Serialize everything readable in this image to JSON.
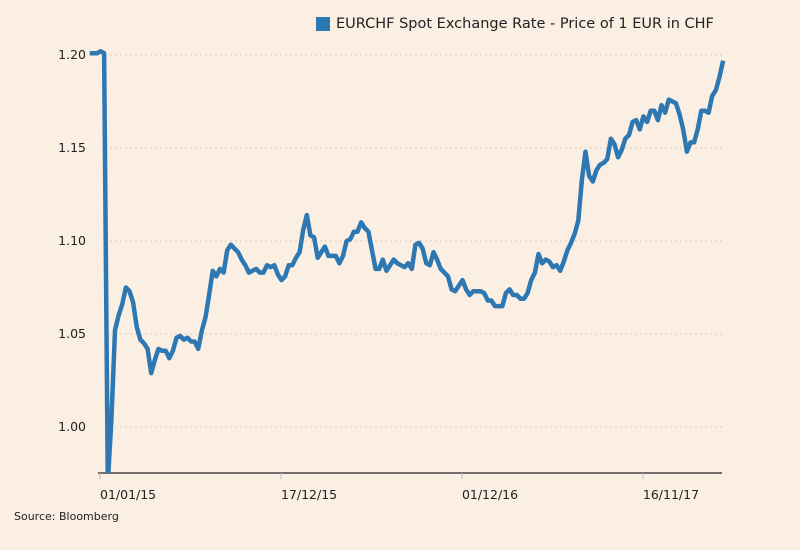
{
  "colors": {
    "series": "#2d78b3",
    "background": "#fbeee3",
    "axis": "#222222",
    "grid": "#d9cfc6"
  },
  "chart_data": {
    "type": "line",
    "title": "",
    "xlabel": "",
    "ylabel": "",
    "legend_position": "top-center",
    "grid": true,
    "ylim": [
      0.975,
      1.21
    ],
    "xlim": [
      "2014-12-12",
      "2018-04-20"
    ],
    "y_ticks": [
      "1.00",
      "1.05",
      "1.10",
      "1.15",
      "1.20"
    ],
    "y_tick_values": [
      1.0,
      1.05,
      1.1,
      1.15,
      1.2
    ],
    "x_ticks": [
      "01/01/15",
      "17/12/15",
      "01/12/16",
      "16/11/17"
    ],
    "x_tick_dates": [
      "2015-01-01",
      "2015-12-17",
      "2016-12-01",
      "2017-11-16"
    ],
    "series": [
      {
        "name": "EURCHF Spot Exchange Rate - Price of 1 EUR in CHF",
        "x": [
          "2014-12-12",
          "2014-12-19",
          "2014-12-26",
          "2015-01-02",
          "2015-01-09",
          "2015-01-16",
          "2015-01-23",
          "2015-01-30",
          "2015-02-06",
          "2015-02-13",
          "2015-02-20",
          "2015-02-27",
          "2015-03-06",
          "2015-03-13",
          "2015-03-20",
          "2015-03-27",
          "2015-04-03",
          "2015-04-10",
          "2015-04-17",
          "2015-04-24",
          "2015-05-01",
          "2015-05-08",
          "2015-05-15",
          "2015-05-22",
          "2015-05-29",
          "2015-06-05",
          "2015-06-12",
          "2015-06-19",
          "2015-06-26",
          "2015-07-03",
          "2015-07-10",
          "2015-07-17",
          "2015-07-24",
          "2015-07-31",
          "2015-08-07",
          "2015-08-14",
          "2015-08-21",
          "2015-08-28",
          "2015-09-04",
          "2015-09-11",
          "2015-09-18",
          "2015-09-25",
          "2015-10-02",
          "2015-10-09",
          "2015-10-16",
          "2015-10-23",
          "2015-10-30",
          "2015-11-06",
          "2015-11-13",
          "2015-11-20",
          "2015-11-27",
          "2015-12-04",
          "2015-12-11",
          "2015-12-18",
          "2015-12-25",
          "2016-01-01",
          "2016-01-08",
          "2016-01-15",
          "2016-01-22",
          "2016-01-29",
          "2016-02-05",
          "2016-02-12",
          "2016-02-19",
          "2016-02-26",
          "2016-03-04",
          "2016-03-11",
          "2016-03-18",
          "2016-03-25",
          "2016-04-01",
          "2016-04-08",
          "2016-04-15",
          "2016-04-22",
          "2016-04-29",
          "2016-05-06",
          "2016-05-13",
          "2016-05-20",
          "2016-05-27",
          "2016-06-03",
          "2016-06-10",
          "2016-06-17",
          "2016-06-24",
          "2016-07-01",
          "2016-07-08",
          "2016-07-15",
          "2016-07-22",
          "2016-07-29",
          "2016-08-05",
          "2016-08-12",
          "2016-08-19",
          "2016-08-26",
          "2016-09-02",
          "2016-09-09",
          "2016-09-16",
          "2016-09-23",
          "2016-09-30",
          "2016-10-07",
          "2016-10-14",
          "2016-10-21",
          "2016-10-28",
          "2016-11-04",
          "2016-11-11",
          "2016-11-18",
          "2016-11-25",
          "2016-12-02",
          "2016-12-09",
          "2016-12-16",
          "2016-12-23",
          "2016-12-30",
          "2017-01-06",
          "2017-01-13",
          "2017-01-20",
          "2017-01-27",
          "2017-02-03",
          "2017-02-10",
          "2017-02-17",
          "2017-02-24",
          "2017-03-03",
          "2017-03-10",
          "2017-03-17",
          "2017-03-24",
          "2017-03-31",
          "2017-04-07",
          "2017-04-14",
          "2017-04-21",
          "2017-04-28",
          "2017-05-05",
          "2017-05-12",
          "2017-05-19",
          "2017-05-26",
          "2017-06-02",
          "2017-06-09",
          "2017-06-16",
          "2017-06-23",
          "2017-06-30",
          "2017-07-07",
          "2017-07-14",
          "2017-07-21",
          "2017-07-28",
          "2017-08-04",
          "2017-08-11",
          "2017-08-18",
          "2017-08-25",
          "2017-09-01",
          "2017-09-08",
          "2017-09-15",
          "2017-09-22",
          "2017-09-29",
          "2017-10-06",
          "2017-10-13",
          "2017-10-20",
          "2017-10-27",
          "2017-11-03",
          "2017-11-10",
          "2017-11-17",
          "2017-11-24",
          "2017-12-01",
          "2017-12-08",
          "2017-12-15",
          "2017-12-22",
          "2017-12-29",
          "2018-01-05",
          "2018-01-12",
          "2018-01-19",
          "2018-01-26",
          "2018-02-02",
          "2018-02-09",
          "2018-02-16",
          "2018-02-23",
          "2018-03-02",
          "2018-03-09",
          "2018-03-16",
          "2018-03-23",
          "2018-03-30",
          "2018-04-06",
          "2018-04-13",
          "2018-04-20"
        ],
        "values": [
          1.2009,
          1.2009,
          1.2009,
          1.202,
          1.201,
          0.97,
          1.004,
          1.052,
          1.06,
          1.066,
          1.075,
          1.073,
          1.067,
          1.054,
          1.047,
          1.045,
          1.042,
          1.029,
          1.036,
          1.042,
          1.041,
          1.041,
          1.037,
          1.041,
          1.048,
          1.049,
          1.047,
          1.048,
          1.046,
          1.046,
          1.042,
          1.052,
          1.059,
          1.071,
          1.084,
          1.081,
          1.085,
          1.083,
          1.095,
          1.098,
          1.096,
          1.094,
          1.09,
          1.087,
          1.083,
          1.084,
          1.085,
          1.083,
          1.083,
          1.087,
          1.086,
          1.087,
          1.082,
          1.079,
          1.081,
          1.087,
          1.087,
          1.091,
          1.094,
          1.106,
          1.114,
          1.103,
          1.102,
          1.091,
          1.094,
          1.097,
          1.092,
          1.092,
          1.092,
          1.088,
          1.092,
          1.1,
          1.101,
          1.105,
          1.105,
          1.11,
          1.107,
          1.105,
          1.095,
          1.085,
          1.085,
          1.09,
          1.084,
          1.087,
          1.09,
          1.088,
          1.087,
          1.086,
          1.088,
          1.085,
          1.098,
          1.099,
          1.096,
          1.088,
          1.087,
          1.094,
          1.09,
          1.085,
          1.083,
          1.081,
          1.074,
          1.073,
          1.076,
          1.079,
          1.074,
          1.071,
          1.073,
          1.073,
          1.073,
          1.072,
          1.068,
          1.068,
          1.065,
          1.065,
          1.065,
          1.072,
          1.074,
          1.071,
          1.071,
          1.069,
          1.069,
          1.072,
          1.079,
          1.083,
          1.093,
          1.088,
          1.09,
          1.089,
          1.086,
          1.087,
          1.084,
          1.089,
          1.095,
          1.099,
          1.104,
          1.111,
          1.133,
          1.148,
          1.135,
          1.132,
          1.138,
          1.141,
          1.142,
          1.144,
          1.155,
          1.152,
          1.145,
          1.149,
          1.155,
          1.157,
          1.164,
          1.165,
          1.16,
          1.167,
          1.164,
          1.17,
          1.17,
          1.165,
          1.173,
          1.169,
          1.176,
          1.175,
          1.174,
          1.168,
          1.16,
          1.148,
          1.153,
          1.153,
          1.16,
          1.17,
          1.17,
          1.169,
          1.178,
          1.181,
          1.188,
          1.197
        ]
      }
    ]
  },
  "source": "Source: Bloomberg"
}
